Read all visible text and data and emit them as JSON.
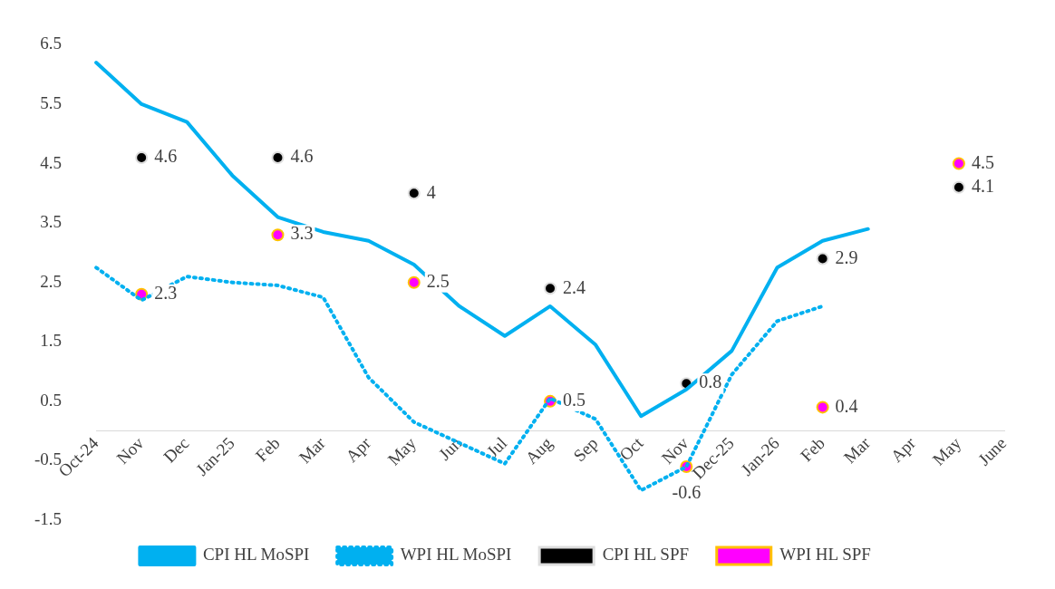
{
  "chart_data": {
    "type": "line",
    "categories": [
      "Oct-24",
      "Nov",
      "Dec",
      "Jan-25",
      "Feb",
      "Mar",
      "Apr",
      "May",
      "Jun",
      "Jul",
      "Aug",
      "Sep",
      "Oct",
      "Nov",
      "Dec-25",
      "Jan-26",
      "Feb",
      "Mar",
      "Apr",
      "May",
      "June"
    ],
    "series": [
      {
        "name": "CPI HL MoSPI",
        "type": "line",
        "color": "#00b0f0",
        "line_style": "solid",
        "marker": "none",
        "values": [
          6.2,
          5.5,
          5.2,
          4.3,
          3.6,
          3.35,
          3.2,
          2.8,
          2.1,
          1.6,
          2.1,
          1.45,
          0.25,
          0.7,
          1.35,
          2.75,
          3.2,
          3.4,
          null,
          null,
          null
        ]
      },
      {
        "name": "WPI HL MoSPI",
        "type": "line",
        "color": "#00b0f0",
        "line_style": "dotted",
        "marker": "none",
        "values": [
          2.75,
          2.2,
          2.6,
          2.5,
          2.45,
          2.25,
          0.9,
          0.15,
          -0.2,
          -0.55,
          0.55,
          0.2,
          -1.0,
          -0.6,
          0.95,
          1.85,
          2.1,
          null,
          null,
          null,
          null
        ]
      },
      {
        "name": "CPI HL SPF",
        "type": "scatter",
        "color": "#000000",
        "marker": "circle",
        "values": [
          null,
          4.6,
          null,
          null,
          4.6,
          null,
          null,
          4,
          null,
          null,
          2.4,
          null,
          null,
          0.8,
          null,
          null,
          2.9,
          null,
          null,
          4.1,
          null
        ],
        "value_labels": [
          null,
          "4.6",
          null,
          null,
          "4.6",
          null,
          null,
          "4",
          null,
          null,
          "2.4",
          null,
          null,
          "0.8",
          null,
          null,
          "2.9",
          null,
          null,
          "4.1",
          null
        ]
      },
      {
        "name": "WPI HL SPF",
        "type": "scatter",
        "color": "#ff00ff",
        "marker": "circle",
        "values": [
          null,
          2.3,
          null,
          null,
          3.3,
          null,
          null,
          2.5,
          null,
          null,
          0.5,
          null,
          null,
          -0.6,
          null,
          null,
          0.4,
          null,
          null,
          4.5,
          null
        ],
        "value_labels": [
          null,
          "2.3",
          null,
          null,
          "3.3",
          null,
          null,
          "2.5",
          null,
          null,
          "0.5",
          null,
          null,
          "-0.6",
          null,
          null,
          "0.4",
          null,
          null,
          "4.5",
          null
        ]
      }
    ],
    "ylim": [
      -1.5,
      6.5
    ],
    "yticks": [
      -1.5,
      -0.5,
      0.5,
      1.5,
      2.5,
      3.5,
      4.5,
      5.5,
      6.5
    ],
    "grid": false,
    "legend": "bottom"
  }
}
